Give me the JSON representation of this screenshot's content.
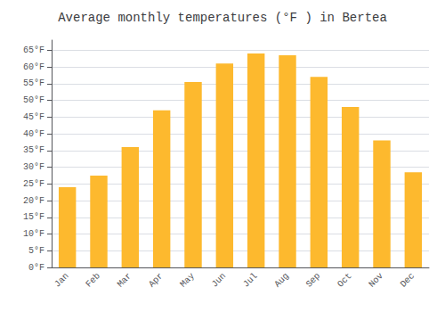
{
  "chart_data": {
    "type": "bar",
    "title": "Average monthly temperatures (°F ) in Bertea",
    "categories": [
      "Jan",
      "Feb",
      "Mar",
      "Apr",
      "May",
      "Jun",
      "Jul",
      "Aug",
      "Sep",
      "Oct",
      "Nov",
      "Dec"
    ],
    "values": [
      24.0,
      27.5,
      36.0,
      47.0,
      55.5,
      61.0,
      64.0,
      63.5,
      57.0,
      48.0,
      38.0,
      28.5
    ],
    "color": "#FDB92E",
    "ylim": [
      0,
      68
    ],
    "yticks": [
      {
        "value": 0,
        "label": "0°F"
      },
      {
        "value": 5,
        "label": "5°F"
      },
      {
        "value": 10,
        "label": "10°F"
      },
      {
        "value": 15,
        "label": "15°F"
      },
      {
        "value": 20,
        "label": "20°F"
      },
      {
        "value": 25,
        "label": "25°F"
      },
      {
        "value": 30,
        "label": "30°F"
      },
      {
        "value": 35,
        "label": "35°F"
      },
      {
        "value": 40,
        "label": "40°F"
      },
      {
        "value": 45,
        "label": "45°F"
      },
      {
        "value": 50,
        "label": "50°F"
      },
      {
        "value": 55,
        "label": "55°F"
      },
      {
        "value": 60,
        "label": "60°F"
      },
      {
        "value": 65,
        "label": "65°F"
      }
    ],
    "grid": true
  }
}
